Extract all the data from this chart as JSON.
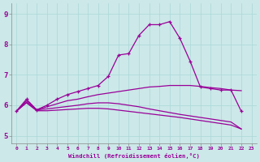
{
  "xlabel": "Windchill (Refroidissement éolien,°C)",
  "bg_color": "#cce8e8",
  "line_color": "#990099",
  "xmin": -0.5,
  "xmax": 23.5,
  "ymin": 4.75,
  "ymax": 9.35,
  "yticks": [
    5,
    6,
    7,
    8,
    9
  ],
  "xticks": [
    0,
    1,
    2,
    3,
    4,
    5,
    6,
    7,
    8,
    9,
    10,
    11,
    12,
    13,
    14,
    15,
    16,
    17,
    18,
    19,
    20,
    21,
    22,
    23
  ],
  "series": [
    {
      "x": [
        0,
        1,
        2,
        3,
        4,
        5,
        6,
        7,
        8,
        9,
        10,
        11,
        12,
        13,
        14,
        15,
        16,
        17,
        18,
        19,
        20,
        21,
        22
      ],
      "y": [
        5.8,
        6.2,
        5.85,
        6.0,
        6.2,
        6.35,
        6.45,
        6.55,
        6.65,
        6.95,
        7.65,
        7.7,
        8.3,
        8.65,
        8.65,
        8.75,
        8.2,
        7.45,
        6.6,
        6.55,
        6.5,
        6.5,
        5.8
      ],
      "marker": true
    },
    {
      "x": [
        0,
        1,
        2,
        3,
        4,
        5,
        6,
        7,
        8,
        9,
        10,
        11,
        12,
        13,
        14,
        15,
        16,
        17,
        18,
        19,
        20,
        21,
        22
      ],
      "y": [
        5.8,
        6.15,
        5.85,
        5.95,
        6.05,
        6.15,
        6.2,
        6.28,
        6.35,
        6.4,
        6.45,
        6.5,
        6.55,
        6.6,
        6.62,
        6.65,
        6.65,
        6.65,
        6.62,
        6.58,
        6.55,
        6.5,
        6.48
      ],
      "marker": false
    },
    {
      "x": [
        0,
        1,
        2,
        3,
        4,
        5,
        6,
        7,
        8,
        9,
        10,
        11,
        12,
        13,
        14,
        15,
        16,
        17,
        18,
        19,
        20,
        21,
        22
      ],
      "y": [
        5.8,
        6.1,
        5.85,
        5.88,
        5.92,
        5.96,
        6.0,
        6.05,
        6.08,
        6.08,
        6.05,
        6.0,
        5.95,
        5.88,
        5.82,
        5.76,
        5.7,
        5.65,
        5.6,
        5.55,
        5.5,
        5.45,
        5.22
      ],
      "marker": false
    },
    {
      "x": [
        0,
        1,
        2,
        3,
        4,
        5,
        6,
        7,
        8,
        9,
        10,
        11,
        12,
        13,
        14,
        15,
        16,
        17,
        18,
        19,
        20,
        21,
        22
      ],
      "y": [
        5.8,
        6.08,
        5.82,
        5.82,
        5.84,
        5.86,
        5.88,
        5.9,
        5.9,
        5.88,
        5.84,
        5.8,
        5.76,
        5.72,
        5.68,
        5.64,
        5.6,
        5.55,
        5.5,
        5.45,
        5.4,
        5.35,
        5.22
      ],
      "marker": false
    }
  ]
}
